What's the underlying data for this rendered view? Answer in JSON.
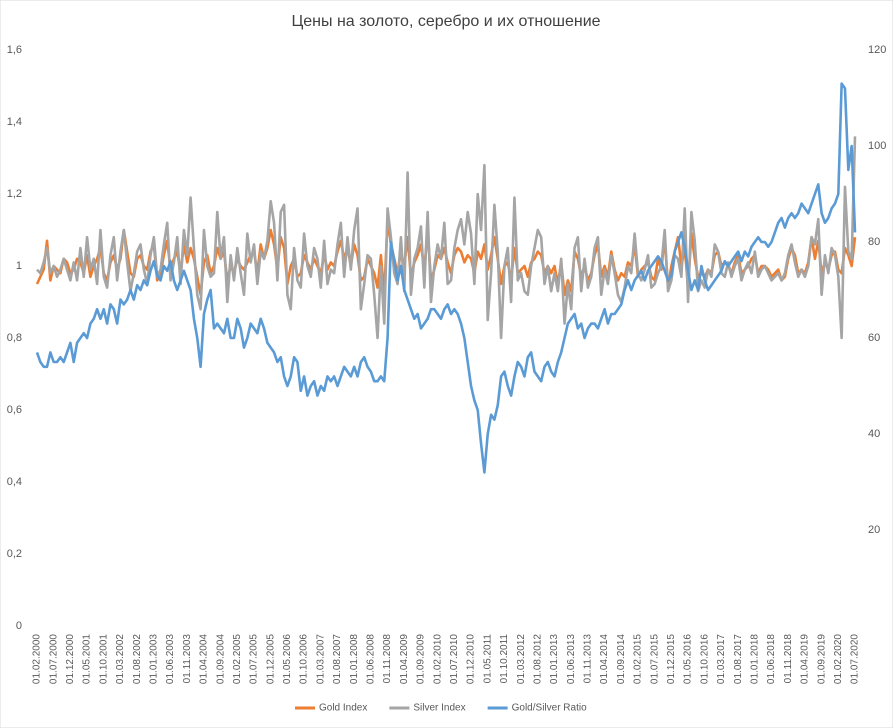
{
  "chart_data": {
    "type": "line",
    "title": "Цены на золото, серебро и их отношение",
    "categories": [
      "01.02.2000",
      null,
      null,
      null,
      null,
      "01.07.2000",
      null,
      null,
      null,
      null,
      "01.12.2000",
      null,
      null,
      null,
      null,
      "01.05.2001",
      null,
      null,
      null,
      null,
      "01.10.2001",
      null,
      null,
      null,
      null,
      "01.03.2002",
      null,
      null,
      null,
      null,
      "01.08.2002",
      null,
      null,
      null,
      null,
      "01.01.2003",
      null,
      null,
      null,
      null,
      "01.06.2003",
      null,
      null,
      null,
      null,
      "01.11.2003",
      null,
      null,
      null,
      null,
      "01.04.2004",
      null,
      null,
      null,
      null,
      "01.09.2004",
      null,
      null,
      null,
      null,
      "01.02.2005",
      null,
      null,
      null,
      null,
      "01.07.2005",
      null,
      null,
      null,
      null,
      "01.12.2005",
      null,
      null,
      null,
      null,
      "01.05.2006",
      null,
      null,
      null,
      null,
      "01.10.2006",
      null,
      null,
      null,
      null,
      "01.03.2007",
      null,
      null,
      null,
      null,
      "01.08.2007",
      null,
      null,
      null,
      null,
      "01.01.2008",
      null,
      null,
      null,
      null,
      "01.06.2008",
      null,
      null,
      null,
      null,
      "01.11.2008",
      null,
      null,
      null,
      null,
      "01.04.2009",
      null,
      null,
      null,
      null,
      "01.09.2009",
      null,
      null,
      null,
      null,
      "01.02.2010",
      null,
      null,
      null,
      null,
      "01.07.2010",
      null,
      null,
      null,
      null,
      "01.12.2010",
      null,
      null,
      null,
      null,
      "01.05.2011",
      null,
      null,
      null,
      null,
      "01.10.2011",
      null,
      null,
      null,
      null,
      "01.03.2012",
      null,
      null,
      null,
      null,
      "01.08.2012",
      null,
      null,
      null,
      null,
      "01.01.2013",
      null,
      null,
      null,
      null,
      "01.06.2013",
      null,
      null,
      null,
      null,
      "01.11.2013",
      null,
      null,
      null,
      null,
      "01.04.2014",
      null,
      null,
      null,
      null,
      "01.09.2014",
      null,
      null,
      null,
      null,
      "01.02.2015",
      null,
      null,
      null,
      null,
      "01.07.2015",
      null,
      null,
      null,
      null,
      "01.12.2015",
      null,
      null,
      null,
      null,
      "01.05.2016",
      null,
      null,
      null,
      null,
      "01.10.2016",
      null,
      null,
      null,
      null,
      "01.03.2017",
      null,
      null,
      null,
      null,
      "01.08.2017",
      null,
      null,
      null,
      null,
      "01.01.2018",
      null,
      null,
      null,
      null,
      "01.06.2018",
      null,
      null,
      null,
      null,
      "01.11.2018",
      null,
      null,
      null,
      null,
      "01.04.2019",
      null,
      null,
      null,
      null,
      "01.09.2019",
      null,
      null,
      null,
      null,
      "01.02.2020",
      null,
      null,
      null,
      null,
      "01.07.2020"
    ],
    "series": [
      {
        "name": "Gold Index",
        "color": "#ED7D31",
        "values": [
          0.95,
          0.97,
          0.99,
          1.07,
          0.96,
          1.0,
          0.99,
          0.98,
          1.02,
          1.01,
          0.98,
          0.99,
          1.02,
          1.01,
          0.98,
          1.03,
          0.97,
          1.0,
          1.02,
          1.05,
          0.98,
          0.96,
          1.01,
          1.03,
          0.99,
          1.02,
          1.1,
          1.04,
          0.98,
          0.97,
          1.02,
          1.03,
          1.0,
          0.99,
          1.04,
          1.06,
          0.96,
          0.98,
          1.03,
          1.07,
          0.99,
          1.02,
          1.04,
          0.98,
          1.06,
          1.01,
          1.05,
          1.02,
          0.97,
          0.92,
          1.01,
          1.03,
          0.98,
          1.0,
          1.05,
          1.02,
          1.04,
          0.96,
          1.0,
          0.98,
          1.02,
          1.0,
          0.99,
          1.01,
          1.03,
          1.04,
          0.98,
          1.06,
          1.02,
          1.05,
          1.1,
          1.06,
          0.99,
          1.08,
          1.05,
          0.95,
          1.0,
          1.02,
          0.97,
          0.98,
          1.03,
          1.01,
          0.99,
          1.02,
          1.0,
          0.98,
          1.03,
          0.99,
          1.01,
          1.0,
          1.04,
          1.07,
          1.02,
          1.05,
          1.0,
          1.06,
          1.03,
          0.96,
          0.97,
          1.02,
          1.0,
          0.98,
          0.94,
          1.03,
          0.92,
          1.13,
          1.06,
          1.02,
          0.98,
          1.04,
          1.0,
          1.08,
          0.97,
          1.01,
          1.03,
          1.06,
          0.99,
          1.1,
          0.96,
          0.99,
          1.03,
          1.02,
          1.05,
          1.01,
          0.98,
          1.03,
          1.05,
          1.04,
          1.01,
          1.03,
          1.02,
          0.98,
          1.04,
          1.02,
          1.06,
          0.99,
          1.03,
          1.08,
          1.02,
          0.95,
          1.0,
          1.01,
          0.96,
          1.05,
          0.98,
          0.99,
          1.0,
          0.97,
          1.01,
          1.02,
          1.04,
          1.03,
          0.98,
          1.0,
          0.98,
          1.0,
          0.95,
          1.01,
          0.92,
          0.96,
          0.93,
          1.04,
          1.02,
          0.97,
          1.0,
          0.96,
          0.98,
          1.03,
          1.06,
          0.97,
          1.0,
          0.97,
          1.04,
          0.99,
          0.96,
          0.98,
          0.97,
          1.01,
          1.0,
          1.06,
          0.97,
          0.99,
          1.0,
          1.01,
          0.97,
          0.96,
          1.02,
          0.99,
          1.08,
          0.94,
          1.0,
          1.04,
          1.08,
          1.0,
          1.05,
          0.94,
          1.09,
          1.02,
          0.97,
          0.98,
          0.97,
          0.99,
          0.98,
          1.03,
          1.04,
          1.0,
          1.01,
          1.0,
          0.98,
          1.01,
          1.03,
          0.98,
          0.99,
          1.0,
          1.02,
          1.03,
          0.98,
          1.0,
          1.0,
          0.99,
          0.97,
          0.98,
          0.99,
          0.96,
          0.97,
          1.02,
          1.05,
          1.03,
          0.98,
          0.99,
          0.98,
          1.01,
          1.08,
          1.02,
          1.07,
          0.98,
          1.01,
          0.99,
          1.03,
          1.04,
          0.99,
          0.98,
          1.05,
          1.03,
          1.0,
          1.08
        ]
      },
      {
        "name": "Silver Index",
        "color": "#A5A5A5",
        "values": [
          0.99,
          0.98,
          1.01,
          1.05,
          0.98,
          1.0,
          0.97,
          0.99,
          1.02,
          0.99,
          0.96,
          1.01,
          0.96,
          1.05,
          0.97,
          1.08,
          0.99,
          1.02,
          0.95,
          1.1,
          0.97,
          0.94,
          1.03,
          1.08,
          0.96,
          1.04,
          1.1,
          1.01,
          0.93,
          0.98,
          1.04,
          1.06,
          0.99,
          0.95,
          1.03,
          1.08,
          0.97,
          0.99,
          1.06,
          1.12,
          0.96,
          1.01,
          1.08,
          0.95,
          1.1,
          1.03,
          1.19,
          1.05,
          0.92,
          0.88,
          1.1,
          1.0,
          0.97,
          0.98,
          1.15,
          1.02,
          1.08,
          0.9,
          1.03,
          0.96,
          1.05,
          0.98,
          0.92,
          1.09,
          1.01,
          1.06,
          0.95,
          1.04,
          1.02,
          1.07,
          1.18,
          1.12,
          0.96,
          1.15,
          1.17,
          0.92,
          0.88,
          1.05,
          0.96,
          0.94,
          1.09,
          1.0,
          0.97,
          1.05,
          1.02,
          0.94,
          1.07,
          0.95,
          0.99,
          0.98,
          1.06,
          1.12,
          0.97,
          1.08,
          0.99,
          1.1,
          1.16,
          0.88,
          0.95,
          1.03,
          1.02,
          0.92,
          0.8,
          1.0,
          0.84,
          1.16,
          1.08,
          0.98,
          0.95,
          1.08,
          0.93,
          1.26,
          0.92,
          1.02,
          1.05,
          1.11,
          0.94,
          1.15,
          0.9,
          1.0,
          1.06,
          1.02,
          1.12,
          0.95,
          0.96,
          1.05,
          1.1,
          1.13,
          1.06,
          1.15,
          1.09,
          0.95,
          1.2,
          1.1,
          1.28,
          0.85,
          0.98,
          1.17,
          1.04,
          0.8,
          1.0,
          1.05,
          0.9,
          1.19,
          0.96,
          0.98,
          0.93,
          0.92,
          1.0,
          1.05,
          1.1,
          1.08,
          0.95,
          1.0,
          0.93,
          0.98,
          0.93,
          1.02,
          0.84,
          0.95,
          0.88,
          1.05,
          1.08,
          0.93,
          1.02,
          0.94,
          0.97,
          1.05,
          1.08,
          0.92,
          0.99,
          0.95,
          1.03,
          0.98,
          0.92,
          0.9,
          0.94,
          1.0,
          0.98,
          1.09,
          0.98,
          0.96,
          0.99,
          1.03,
          0.94,
          0.95,
          0.98,
          1.0,
          1.1,
          0.93,
          0.96,
          1.03,
          1.02,
          0.97,
          1.16,
          0.9,
          1.15,
          1.07,
          0.93,
          0.96,
          0.94,
          0.99,
          0.97,
          1.06,
          1.04,
          0.98,
          0.97,
          1.01,
          0.97,
          1.0,
          1.02,
          0.96,
          0.99,
          1.01,
          0.98,
          1.04,
          0.97,
          0.99,
          1.0,
          0.98,
          0.96,
          0.97,
          0.98,
          0.96,
          0.98,
          1.03,
          1.06,
          1.01,
          0.97,
          0.99,
          0.97,
          1.0,
          1.08,
          1.06,
          1.13,
          0.92,
          1.03,
          0.98,
          1.05,
          1.03,
          0.97,
          0.8,
          1.22,
          1.04,
          1.02,
          1.36
        ]
      },
      {
        "name": "Gold/Silver Ratio",
        "color": "#5B9BD5",
        "axis": "y2",
        "values": [
          57,
          55,
          54,
          54,
          57,
          55,
          55,
          56,
          55,
          57,
          59,
          55,
          59,
          60,
          61,
          60,
          63,
          64,
          66,
          64,
          66,
          63,
          67,
          66,
          63,
          68,
          67,
          68,
          70,
          68,
          71,
          70,
          72,
          71,
          74,
          76,
          73,
          72,
          75,
          74,
          76,
          72,
          70,
          72,
          74,
          72,
          70,
          64,
          60,
          54,
          65,
          68,
          70,
          62,
          63,
          62,
          61,
          64,
          60,
          60,
          64,
          62,
          58,
          60,
          63,
          62,
          61,
          64,
          62,
          59,
          58,
          57,
          55,
          56,
          52,
          50,
          52,
          56,
          55,
          49,
          52,
          48,
          50,
          51,
          48,
          50,
          49,
          52,
          51,
          52,
          50,
          52,
          54,
          53,
          52,
          54,
          52,
          55,
          56,
          54,
          53,
          51,
          51,
          52,
          51,
          60,
          80,
          76,
          72,
          75,
          70,
          68,
          66,
          64,
          65,
          62,
          63,
          64,
          66,
          66,
          65,
          64,
          66,
          67,
          65,
          66,
          65,
          63,
          60,
          55,
          50,
          47,
          45,
          38,
          32,
          40,
          44,
          43,
          46,
          52,
          53,
          50,
          48,
          52,
          55,
          54,
          52,
          56,
          57,
          53,
          52,
          51,
          54,
          55,
          53,
          52,
          55,
          57,
          60,
          63,
          64,
          65,
          62,
          63,
          60,
          62,
          63,
          63,
          62,
          64,
          66,
          63,
          65,
          65,
          66,
          67,
          70,
          72,
          70,
          72,
          73,
          74,
          72,
          74,
          75,
          76,
          77,
          76,
          74,
          72,
          73,
          78,
          80,
          82,
          79,
          74,
          70,
          72,
          70,
          75,
          72,
          70,
          71,
          72,
          73,
          74,
          76,
          75,
          76,
          77,
          78,
          76,
          78,
          77,
          79,
          80,
          81,
          80,
          80,
          79,
          80,
          82,
          84,
          85,
          83,
          85,
          86,
          85,
          86,
          88,
          87,
          86,
          88,
          90,
          92,
          86,
          84,
          85,
          87,
          88,
          90,
          113,
          112,
          95,
          100,
          82
        ]
      }
    ],
    "ylim": [
      0,
      1.6
    ],
    "yticks": [
      0,
      {
        "value": 0.2,
        "label": "0,2"
      },
      {
        "value": 0.4,
        "label": "0,4"
      },
      {
        "value": 0.6,
        "label": "0,6"
      },
      {
        "value": 0.8,
        "label": "0,8"
      },
      1,
      {
        "value": 1.2,
        "label": "1,2"
      },
      {
        "value": 1.4,
        "label": "1,4"
      },
      {
        "value": 1.6,
        "label": "1,6"
      }
    ],
    "y2lim": [
      0,
      120
    ],
    "y2ticks": [
      20,
      40,
      60,
      80,
      100,
      120
    ],
    "grid": false,
    "legend": "bottom"
  }
}
